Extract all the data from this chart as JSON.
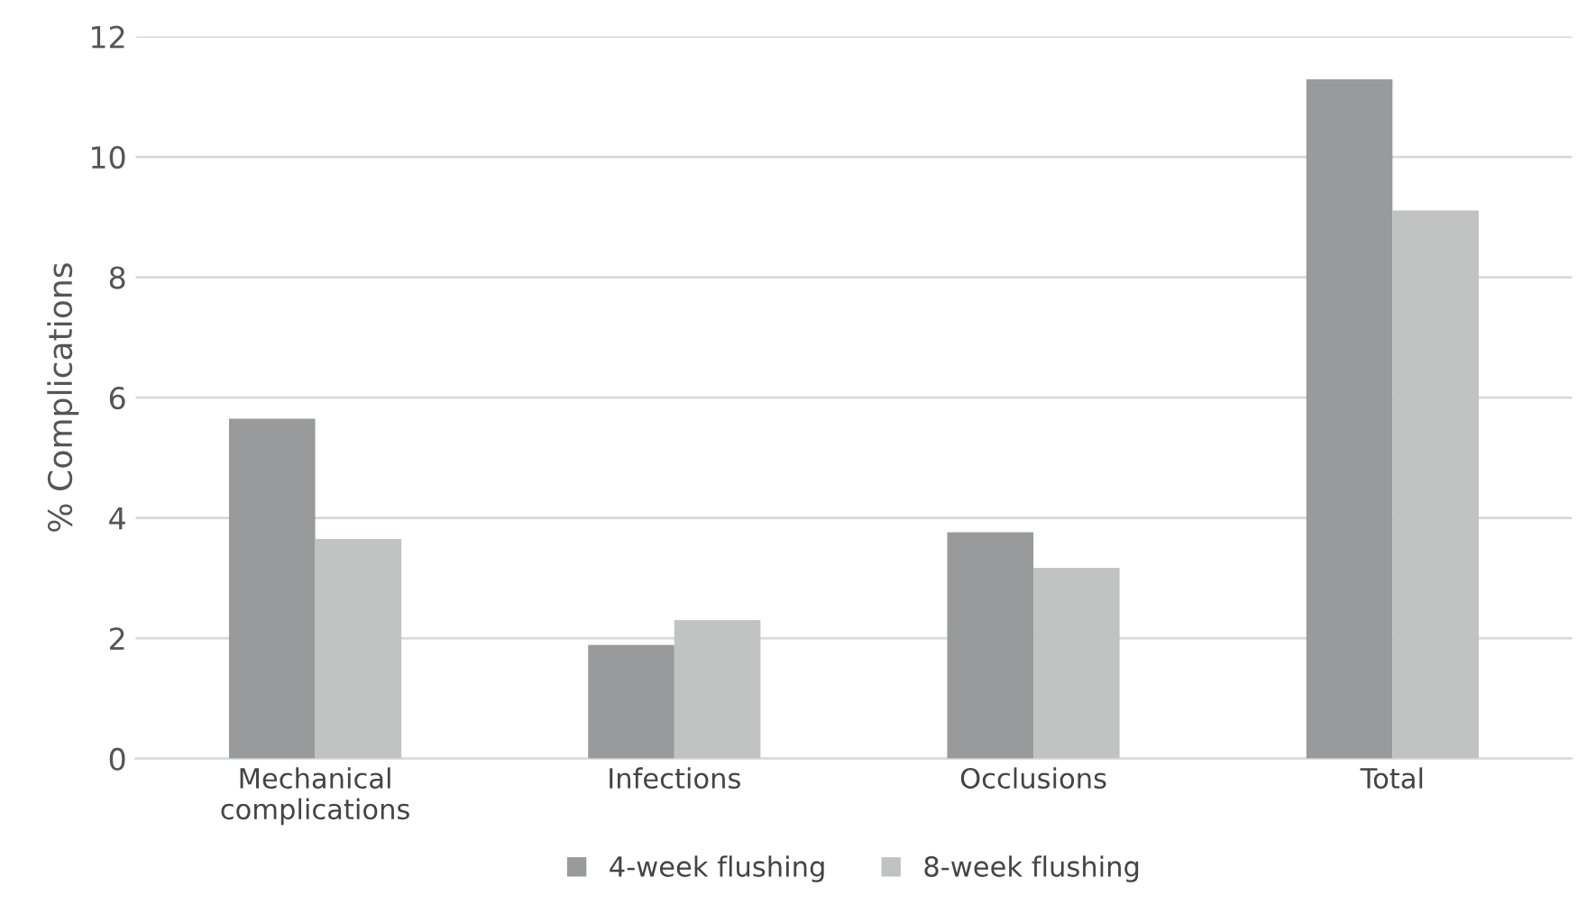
{
  "chart_data": {
    "type": "bar",
    "ylabel": "% Complications",
    "categories": [
      "Mechanical\ncomplications",
      "Infections",
      "Occlusions",
      "Total"
    ],
    "series": [
      {
        "name": "4-week flushing",
        "color": "#999a9b",
        "values": [
          5.65,
          1.89,
          3.76,
          11.29
        ]
      },
      {
        "name": "8-week flushing",
        "color": "#c1c2c2",
        "values": [
          3.65,
          2.3,
          3.17,
          9.11
        ]
      }
    ],
    "ylim": [
      0,
      12
    ],
    "yticks": [
      0,
      2,
      4,
      6,
      8,
      10,
      12
    ],
    "grid": "y",
    "legend": "bottom"
  }
}
